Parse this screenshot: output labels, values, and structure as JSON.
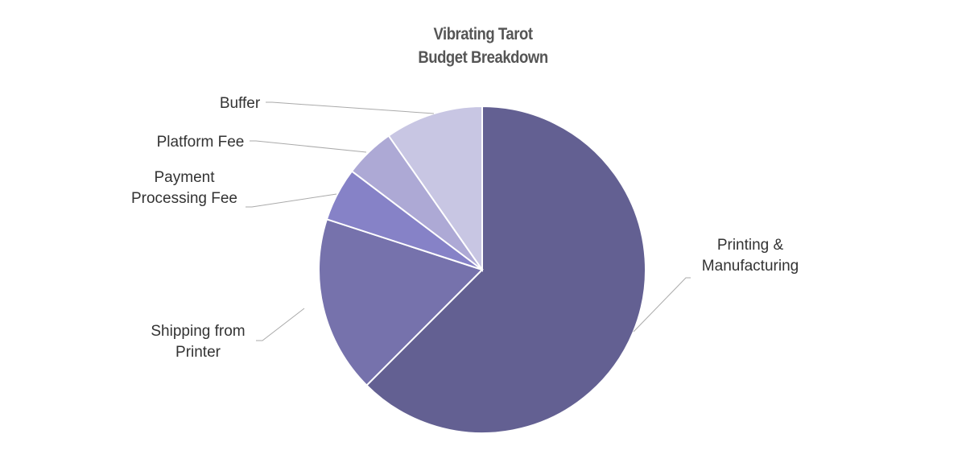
{
  "chart_data": {
    "type": "pie",
    "title": [
      "Vibrating Tarot",
      "Budget Breakdown"
    ],
    "start_angle_deg": 0,
    "direction": "clockwise",
    "slices": [
      {
        "label": [
          "Printing &",
          "Manufacturing"
        ],
        "value": 62.5,
        "color": "#636092"
      },
      {
        "label": [
          "Shipping from",
          "Printer"
        ],
        "value": 17.5,
        "color": "#7672ac"
      },
      {
        "label": [
          "Payment",
          "Processing Fee"
        ],
        "value": 5.3,
        "color": "#8682c7"
      },
      {
        "label": [
          "Platform Fee"
        ],
        "value": 5.0,
        "color": "#ada9d5"
      },
      {
        "label": [
          "Buffer"
        ],
        "value": 9.7,
        "color": "#c8c6e3"
      }
    ]
  }
}
